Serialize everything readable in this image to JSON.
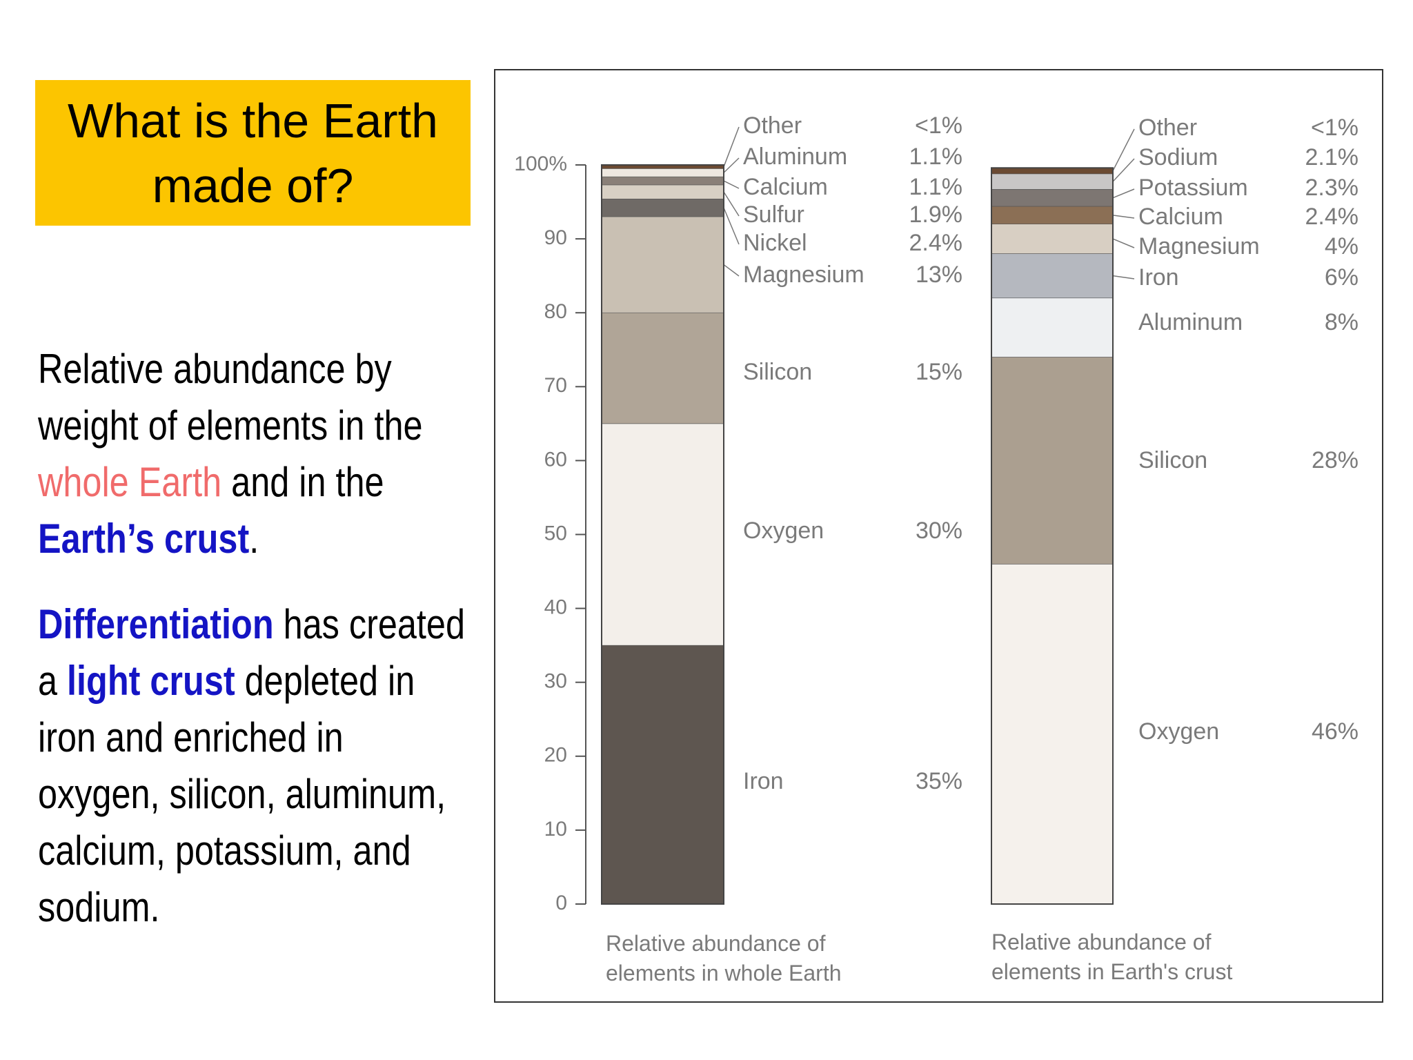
{
  "slide": {
    "title": "What is the Earth made of?",
    "paragraphs": [
      [
        {
          "text": "Relative abundance by weight of elements in the "
        },
        {
          "text": "whole Earth",
          "emphasis": "red"
        },
        {
          "text": " and in the "
        },
        {
          "text": "Earth’s crust",
          "emphasis": "blue-bold"
        },
        {
          "text": "."
        }
      ],
      [
        {
          "text": "Differentiation",
          "emphasis": "blue-bold"
        },
        {
          "text": " has created a "
        },
        {
          "text": "light crust",
          "emphasis": "blue-bold"
        },
        {
          "text": " depleted  in iron and enriched in oxygen, silicon, aluminum, calcium, potassium, and sodium."
        }
      ]
    ]
  },
  "chart_data": [
    {
      "type": "stacked-bar",
      "xlabel": "Relative abundance of elements in whole Earth",
      "categories": [
        "Iron",
        "Oxygen",
        "Silicon",
        "Magnesium",
        "Nickel",
        "Sulfur",
        "Calcium",
        "Aluminum",
        "Other"
      ],
      "values": [
        35,
        30,
        15,
        13,
        2.4,
        1.9,
        1.1,
        1.1,
        0.5
      ],
      "value_labels": [
        "35%",
        "30%",
        "15%",
        "13%",
        "2.4%",
        "1.9%",
        "1.1%",
        "1.1%",
        "<1%"
      ],
      "colors": [
        "#5e5650",
        "#f3efea",
        "#b0a597",
        "#c9c0b3",
        "#6f6a66",
        "#d8d0c4",
        "#8a8078",
        "#eee8e0",
        "#6b4a32"
      ],
      "ylim": [
        0,
        100
      ],
      "yticks": [
        0,
        10,
        20,
        30,
        40,
        50,
        60,
        70,
        80,
        90,
        {
          "value": 100,
          "label": "100%"
        }
      ]
    },
    {
      "type": "stacked-bar",
      "xlabel": "Relative abundance of elements in Earth's crust",
      "categories": [
        "Oxygen",
        "Silicon",
        "Aluminum",
        "Iron",
        "Magnesium",
        "Calcium",
        "Potassium",
        "Sodium",
        "Other"
      ],
      "values": [
        46,
        28,
        8,
        6,
        4,
        2.4,
        2.3,
        2.1,
        0.8
      ],
      "value_labels": [
        "46%",
        "28%",
        "8%",
        "6%",
        "4%",
        "2.4%",
        "2.3%",
        "2.1%",
        "<1%"
      ],
      "colors": [
        "#f5f1ec",
        "#ab9f90",
        "#eef0f2",
        "#b5b8bf",
        "#d8cfc3",
        "#8b6f55",
        "#7d7672",
        "#c8c6c6",
        "#6b4a32"
      ],
      "ylim": [
        0,
        100
      ]
    }
  ]
}
